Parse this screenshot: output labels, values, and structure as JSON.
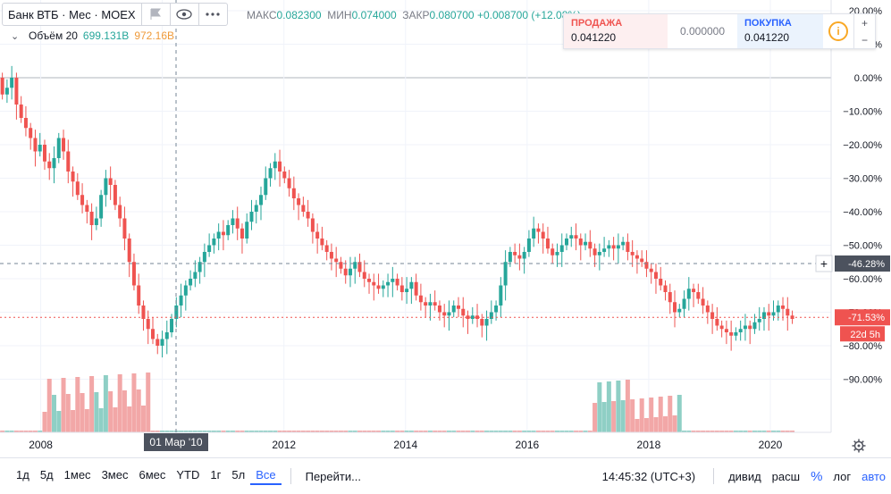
{
  "header": {
    "title": "Банк ВТБ · Мес · MOEX",
    "ohlc": {
      "high_label": "МАКС",
      "high": "0.082300",
      "low_label": "МИН",
      "low": "0.074000",
      "close_label": "ЗАКР",
      "close": "0.080700",
      "change": "+0.008700 (+12.08%)"
    }
  },
  "volume_legend": {
    "label": "Объём 20",
    "value1": "699.131B",
    "value2": "972.16B"
  },
  "trade_widget": {
    "sell_label": "ПРОДАЖА",
    "sell_price": "0.041220",
    "spread": "0.000000",
    "buy_label": "ПОКУПКА",
    "buy_price": "0.041220"
  },
  "crosshair": {
    "date_label": "01 Мар '10",
    "price_label": "-46.28%"
  },
  "last_price": {
    "label": "-71.53%",
    "countdown": "22d 5h"
  },
  "bottom_bar": {
    "ranges": [
      "1д",
      "5д",
      "1мес",
      "3мес",
      "6мес",
      "YTD",
      "1г",
      "5л",
      "Все"
    ],
    "active_range": "Все",
    "goto": "Перейти...",
    "time": "14:45:32 (UTC+3)",
    "options": {
      "div": "дивид",
      "ext": "расш",
      "pct": "%",
      "log": "лог",
      "auto": "авто"
    }
  },
  "colors": {
    "up": "#26a69a",
    "down": "#ef5350",
    "vol_up": "#8fcfc5",
    "vol_down": "#f2a7a7",
    "accent": "#2962ff"
  },
  "chart_data": {
    "type": "candlestick",
    "yaxis": {
      "unit": "%",
      "ylim": [
        -100,
        20
      ],
      "ticks": [
        20,
        10,
        0,
        -10,
        -20,
        -30,
        -40,
        -50,
        -60,
        -70,
        -80,
        -90
      ]
    },
    "xaxis": {
      "ticks": [
        "2008",
        "2010",
        "2012",
        "2014",
        "2016",
        "2018",
        "2020"
      ]
    },
    "x_start": 2007.33,
    "interval_months": 1,
    "closes": [
      -5,
      -3,
      0,
      -8,
      -12,
      -15,
      -18,
      -22,
      -20,
      -25,
      -27,
      -24,
      -18,
      -22,
      -28,
      -31,
      -35,
      -38,
      -40,
      -44,
      -42,
      -35,
      -30,
      -32,
      -38,
      -42,
      -48,
      -55,
      -62,
      -68,
      -72,
      -75,
      -78,
      -80,
      -78,
      -76,
      -72,
      -68,
      -65,
      -62,
      -60,
      -58,
      -55,
      -52,
      -50,
      -48,
      -46,
      -47,
      -44,
      -42,
      -45,
      -48,
      -43,
      -40,
      -38,
      -35,
      -30,
      -27,
      -25,
      -28,
      -30,
      -33,
      -36,
      -38,
      -40,
      -42,
      -46,
      -48,
      -50,
      -52,
      -54,
      -55,
      -57,
      -59,
      -57,
      -55,
      -58,
      -60,
      -61,
      -62,
      -63,
      -62,
      -61,
      -60,
      -62,
      -64,
      -63,
      -61,
      -65,
      -67,
      -68,
      -67,
      -68,
      -70,
      -71,
      -70,
      -68,
      -69,
      -71,
      -72,
      -71,
      -72,
      -74,
      -72,
      -70,
      -68,
      -62,
      -55,
      -52,
      -53,
      -54,
      -52,
      -48,
      -45,
      -46,
      -48,
      -51,
      -53,
      -52,
      -50,
      -48,
      -47,
      -48,
      -50,
      -49,
      -51,
      -53,
      -52,
      -51,
      -50,
      -51,
      -50,
      -49,
      -52,
      -53,
      -54,
      -55,
      -57,
      -58,
      -60,
      -62,
      -64,
      -67,
      -70,
      -69,
      -66,
      -63,
      -64,
      -66,
      -68,
      -70,
      -72,
      -74,
      -75,
      -76,
      -77,
      -76,
      -75,
      -74,
      -75,
      -73,
      -72,
      -70,
      -71,
      -70,
      -68,
      -69,
      -71,
      -72
    ]
  }
}
